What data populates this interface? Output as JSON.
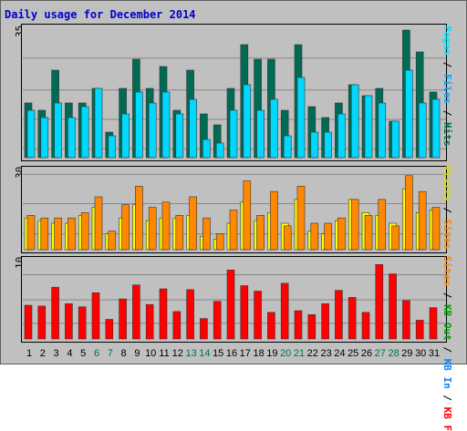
{
  "title": "Daily usage for December 2014",
  "colors": {
    "background": "#c0c0c0",
    "title": "#0000cc",
    "hits": "#006b54",
    "files": "#00d8ff",
    "pages": "#00e8ff",
    "visits": "#ffff00",
    "sites": "#ff8800",
    "kb_f": "#ff0000",
    "kb_in": "#0088ff",
    "kb_out": "#00a000",
    "slash": "#000000",
    "weekday": "#000000",
    "weekend": "#007050",
    "bar_border": "#333333",
    "grid": "#888888"
  },
  "chart_data": [
    {
      "type": "bar",
      "panel": "hits-files-pages",
      "y_max_label": "35",
      "ylim": [
        0,
        35
      ],
      "grid": true,
      "legend": [
        "Pages",
        "Files",
        "Hits"
      ],
      "categories": [
        "1",
        "2",
        "3",
        "4",
        "5",
        "6",
        "7",
        "8",
        "9",
        "10",
        "11",
        "12",
        "13",
        "14",
        "15",
        "16",
        "17",
        "18",
        "19",
        "20",
        "21",
        "22",
        "23",
        "24",
        "25",
        "26",
        "27",
        "28",
        "29",
        "30",
        "31"
      ],
      "series": [
        {
          "name": "Hits",
          "color": "#006b54",
          "values": [
            15,
            13,
            24,
            15,
            15,
            19,
            7,
            19,
            27,
            19,
            25,
            13,
            24,
            12,
            9,
            19,
            31,
            27,
            27,
            13,
            31,
            14,
            11,
            15,
            20,
            17,
            19,
            10,
            35,
            29,
            18
          ]
        },
        {
          "name": "Files",
          "color": "#00d8ff",
          "values": [
            13,
            11,
            15,
            11,
            14,
            19,
            6,
            12,
            18,
            15,
            18,
            12,
            16,
            5,
            4,
            13,
            20,
            13,
            16,
            6,
            22,
            7,
            7,
            12,
            20,
            17,
            15,
            10,
            24,
            15,
            16
          ]
        }
      ]
    },
    {
      "type": "bar",
      "panel": "visits-sites",
      "y_max_label": "30",
      "ylim": [
        0,
        30
      ],
      "grid": true,
      "legend": [
        "Visits",
        "Sites"
      ],
      "categories": [
        "1",
        "2",
        "3",
        "4",
        "5",
        "6",
        "7",
        "8",
        "9",
        "10",
        "11",
        "12",
        "13",
        "14",
        "15",
        "16",
        "17",
        "18",
        "19",
        "20",
        "21",
        "22",
        "23",
        "24",
        "25",
        "26",
        "27",
        "28",
        "29",
        "30",
        "31"
      ],
      "series": [
        {
          "name": "Visits",
          "color": "#ffff00",
          "values": [
            12,
            11,
            10,
            10,
            13,
            16,
            6,
            12,
            17,
            11,
            12,
            12,
            13,
            5,
            4,
            10,
            18,
            11,
            14,
            10,
            19,
            7,
            6,
            11,
            19,
            14,
            13,
            10,
            23,
            14,
            15
          ]
        },
        {
          "name": "Sites",
          "color": "#ff8800",
          "values": [
            13,
            12,
            12,
            12,
            14,
            20,
            7,
            17,
            24,
            16,
            18,
            13,
            20,
            12,
            6,
            15,
            26,
            13,
            22,
            9,
            24,
            10,
            10,
            12,
            19,
            13,
            19,
            9,
            28,
            22,
            16
          ]
        }
      ]
    },
    {
      "type": "bar",
      "panel": "kbytes",
      "y_max_label": "10",
      "ylim": [
        0,
        10
      ],
      "grid": true,
      "legend": [
        "KB F",
        "KB In",
        "KB Out",
        "Sites",
        "Visits"
      ],
      "categories": [
        "1",
        "2",
        "3",
        "4",
        "5",
        "6",
        "7",
        "8",
        "9",
        "10",
        "11",
        "12",
        "13",
        "14",
        "15",
        "16",
        "17",
        "18",
        "19",
        "20",
        "21",
        "22",
        "23",
        "24",
        "25",
        "26",
        "27",
        "28",
        "29",
        "30",
        "31"
      ],
      "series": [
        {
          "name": "KB F",
          "color": "#ff0000",
          "values": [
            4.3,
            4.2,
            6.6,
            4.5,
            4.1,
            5.9,
            2.5,
            5.1,
            6.9,
            4.4,
            6.4,
            3.5,
            6.3,
            2.6,
            4.8,
            8.8,
            6.8,
            6.1,
            3.4,
            7.1,
            3.6,
            3.1,
            4.5,
            6.2,
            5.3,
            3.4,
            9.5,
            8.3,
            4.9,
            2.4,
            4.0
          ]
        }
      ]
    }
  ],
  "x_labels": [
    {
      "t": "1",
      "we": false
    },
    {
      "t": "2",
      "we": false
    },
    {
      "t": "3",
      "we": false
    },
    {
      "t": "4",
      "we": false
    },
    {
      "t": "5",
      "we": false
    },
    {
      "t": "6",
      "we": true
    },
    {
      "t": "7",
      "we": true
    },
    {
      "t": "8",
      "we": false
    },
    {
      "t": "9",
      "we": false
    },
    {
      "t": "10",
      "we": false
    },
    {
      "t": "11",
      "we": false
    },
    {
      "t": "12",
      "we": false
    },
    {
      "t": "13",
      "we": true
    },
    {
      "t": "14",
      "we": true
    },
    {
      "t": "15",
      "we": false
    },
    {
      "t": "16",
      "we": false
    },
    {
      "t": "17",
      "we": false
    },
    {
      "t": "18",
      "we": false
    },
    {
      "t": "19",
      "we": false
    },
    {
      "t": "20",
      "we": true
    },
    {
      "t": "21",
      "we": true
    },
    {
      "t": "22",
      "we": false
    },
    {
      "t": "23",
      "we": false
    },
    {
      "t": "24",
      "we": false
    },
    {
      "t": "25",
      "we": false
    },
    {
      "t": "26",
      "we": false
    },
    {
      "t": "27",
      "we": true
    },
    {
      "t": "28",
      "we": true
    },
    {
      "t": "29",
      "we": false
    },
    {
      "t": "30",
      "we": false
    },
    {
      "t": "31",
      "we": false
    }
  ],
  "legend_text": {
    "pages": "Pages",
    "files": "Files",
    "hits": "Hits",
    "visits": "Visits",
    "sites": "Sites",
    "kbf": "KB F",
    "kbin": "KB In",
    "kbout": "KB Out",
    "sep": " / "
  }
}
